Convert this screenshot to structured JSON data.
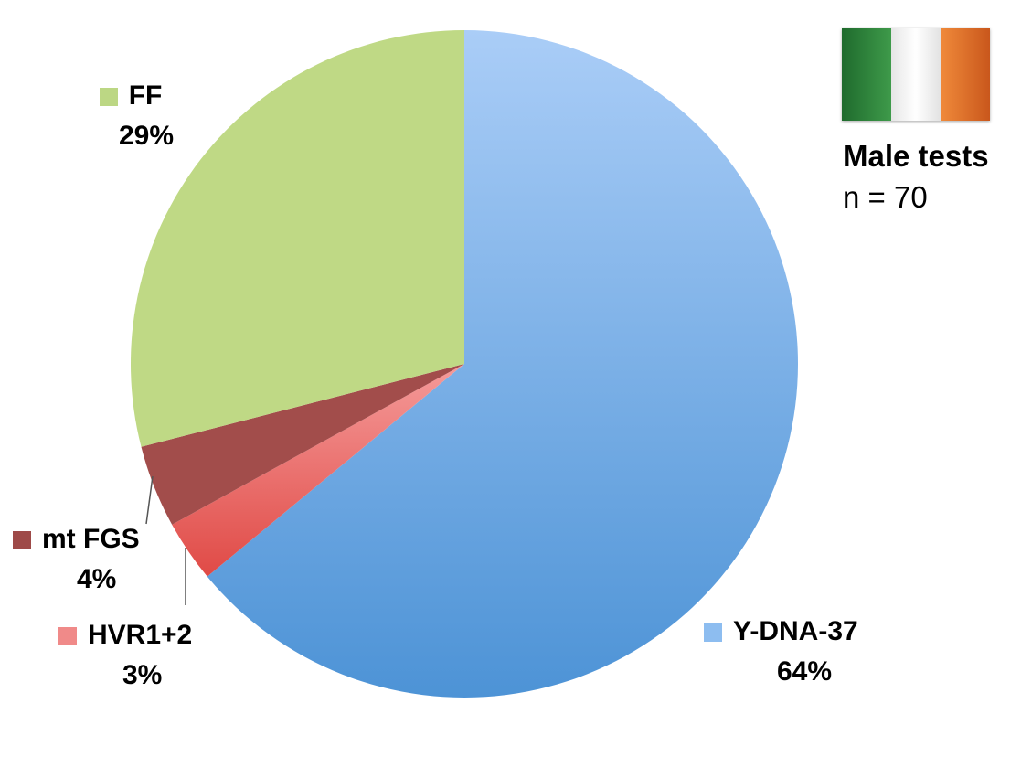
{
  "chart_data": {
    "type": "pie",
    "title": "Male tests",
    "subtitle": "n = 70",
    "slices": [
      {
        "label": "Y-DNA-37",
        "value": 64,
        "percent_label": "64%",
        "color": "#7bb0e6",
        "swatch": "#8dbdf0"
      },
      {
        "label": "HVR1+2",
        "value": 3,
        "percent_label": "3%",
        "color": "#e86a68",
        "swatch": "#f08a89"
      },
      {
        "label": "mt FGS",
        "value": 4,
        "percent_label": "4%",
        "color": "#a24d4b",
        "swatch": "#9e4a48"
      },
      {
        "label": "FF",
        "value": 29,
        "percent_label": "29%",
        "color": "#bfd985",
        "swatch": "#bcd784"
      }
    ],
    "legend": "labels beside slices"
  },
  "flag": {
    "icon": "ireland-flag-icon",
    "colors": [
      "#2f8a3c",
      "#f3f3f3",
      "#e8762a"
    ]
  }
}
